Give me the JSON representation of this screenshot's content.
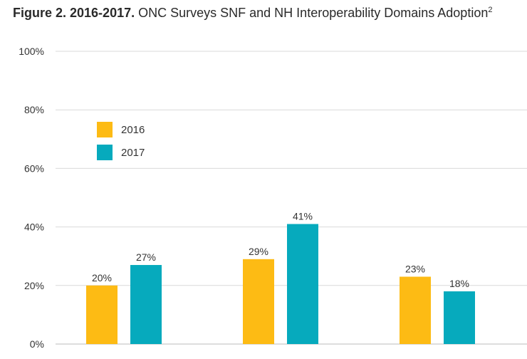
{
  "title": {
    "bold": "Figure 2. 2016-2017.",
    "text": "ONC Surveys SNF and NH Interoperability Domains Adoption",
    "superscript": "2"
  },
  "chart_data": {
    "type": "bar",
    "categories": [
      "",
      "",
      ""
    ],
    "series": [
      {
        "name": "2016",
        "values": [
          20,
          29,
          23
        ],
        "labels": [
          "20%",
          "29%",
          "23%"
        ],
        "color": "#FDBB14"
      },
      {
        "name": "2017",
        "values": [
          27,
          41,
          18
        ],
        "labels": [
          "27%",
          "41%",
          "18%"
        ],
        "color": "#06AABD"
      }
    ],
    "ylim": [
      0,
      100
    ],
    "yticks": [
      0,
      20,
      40,
      60,
      80,
      100
    ],
    "ytick_labels": [
      "0%",
      "20%",
      "40%",
      "60%",
      "80%",
      "100%"
    ],
    "grid": true,
    "legend_position": "top-left",
    "xlabel": "",
    "ylabel": ""
  },
  "colors": {
    "grid": "#d9d9d9",
    "text": "#333333"
  }
}
